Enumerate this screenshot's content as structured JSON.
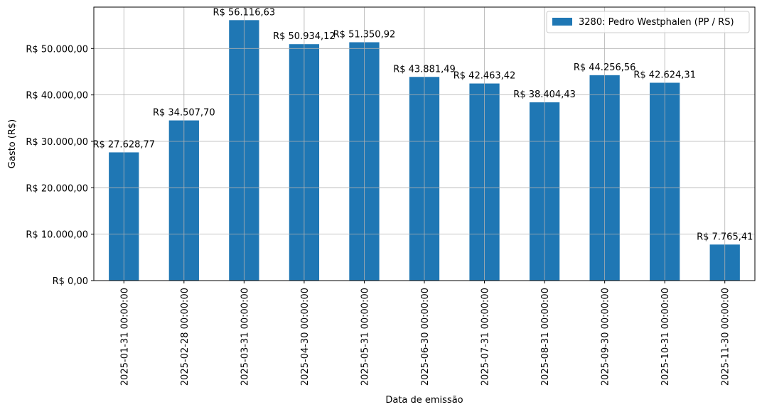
{
  "chart_data": {
    "type": "bar",
    "categories": [
      "2025-01-31 00:00:00",
      "2025-02-28 00:00:00",
      "2025-03-31 00:00:00",
      "2025-04-30 00:00:00",
      "2025-05-31 00:00:00",
      "2025-06-30 00:00:00",
      "2025-07-31 00:00:00",
      "2025-08-31 00:00:00",
      "2025-09-30 00:00:00",
      "2025-10-31 00:00:00",
      "2025-11-30 00:00:00"
    ],
    "series": [
      {
        "name": "3280: Pedro Westphalen (PP / RS)",
        "values": [
          27628.77,
          34507.7,
          56116.63,
          50934.12,
          51350.92,
          43881.49,
          42463.42,
          38404.43,
          44256.56,
          42624.31,
          7765.41
        ],
        "data_labels": [
          "R$ 27.628,77",
          "R$ 34.507,70",
          "R$ 56.116,63",
          "R$ 50.934,12",
          "R$ 51.350,92",
          "R$ 43.881,49",
          "R$ 42.463,42",
          "R$ 38.404,43",
          "R$ 44.256,56",
          "R$ 42.624,31",
          "R$ 7.765,41"
        ],
        "color": "#1f77b4"
      }
    ],
    "xlabel": "Data de emissão",
    "ylabel": "Gasto (R$)",
    "ylim": [
      0,
      58922.46
    ],
    "yticks": [
      0,
      10000,
      20000,
      30000,
      40000,
      50000
    ],
    "ytick_labels": [
      "R$ 0,00",
      "R$ 10.000,00",
      "R$ 20.000,00",
      "R$ 30.000,00",
      "R$ 40.000,00",
      "R$ 50.000,00"
    ],
    "grid": true,
    "legend_position": "top-right"
  }
}
